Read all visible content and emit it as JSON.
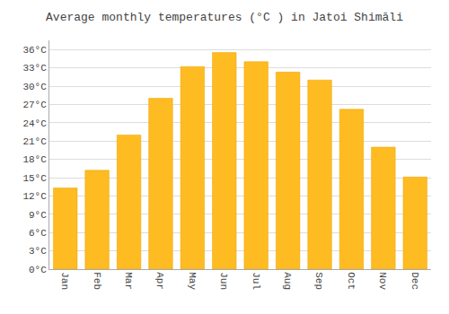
{
  "chart_data": {
    "type": "bar",
    "title": "Average monthly temperatures (°C ) in Jatoi Shimāli",
    "categories": [
      "Jan",
      "Feb",
      "Mar",
      "Apr",
      "May",
      "Jun",
      "Jul",
      "Aug",
      "Sep",
      "Oct",
      "Nov",
      "Dec"
    ],
    "values": [
      13.3,
      16.2,
      22.0,
      28.0,
      33.2,
      35.5,
      34.0,
      32.3,
      31.0,
      26.2,
      20.0,
      15.1
    ],
    "color": "#FFBB22",
    "ylim": [
      0,
      37.5
    ],
    "yticks": [
      {
        "value": 0,
        "label": "0°C"
      },
      {
        "value": 3,
        "label": "3°C"
      },
      {
        "value": 6,
        "label": "6°C"
      },
      {
        "value": 9,
        "label": "9°C"
      },
      {
        "value": 12,
        "label": "12°C"
      },
      {
        "value": 15,
        "label": "15°C"
      },
      {
        "value": 18,
        "label": "18°C"
      },
      {
        "value": 21,
        "label": "21°C"
      },
      {
        "value": 24,
        "label": "24°C"
      },
      {
        "value": 27,
        "label": "27°C"
      },
      {
        "value": 30,
        "label": "30°C"
      },
      {
        "value": 33,
        "label": "33°C"
      },
      {
        "value": 36,
        "label": "36°C"
      }
    ],
    "grid": true
  }
}
